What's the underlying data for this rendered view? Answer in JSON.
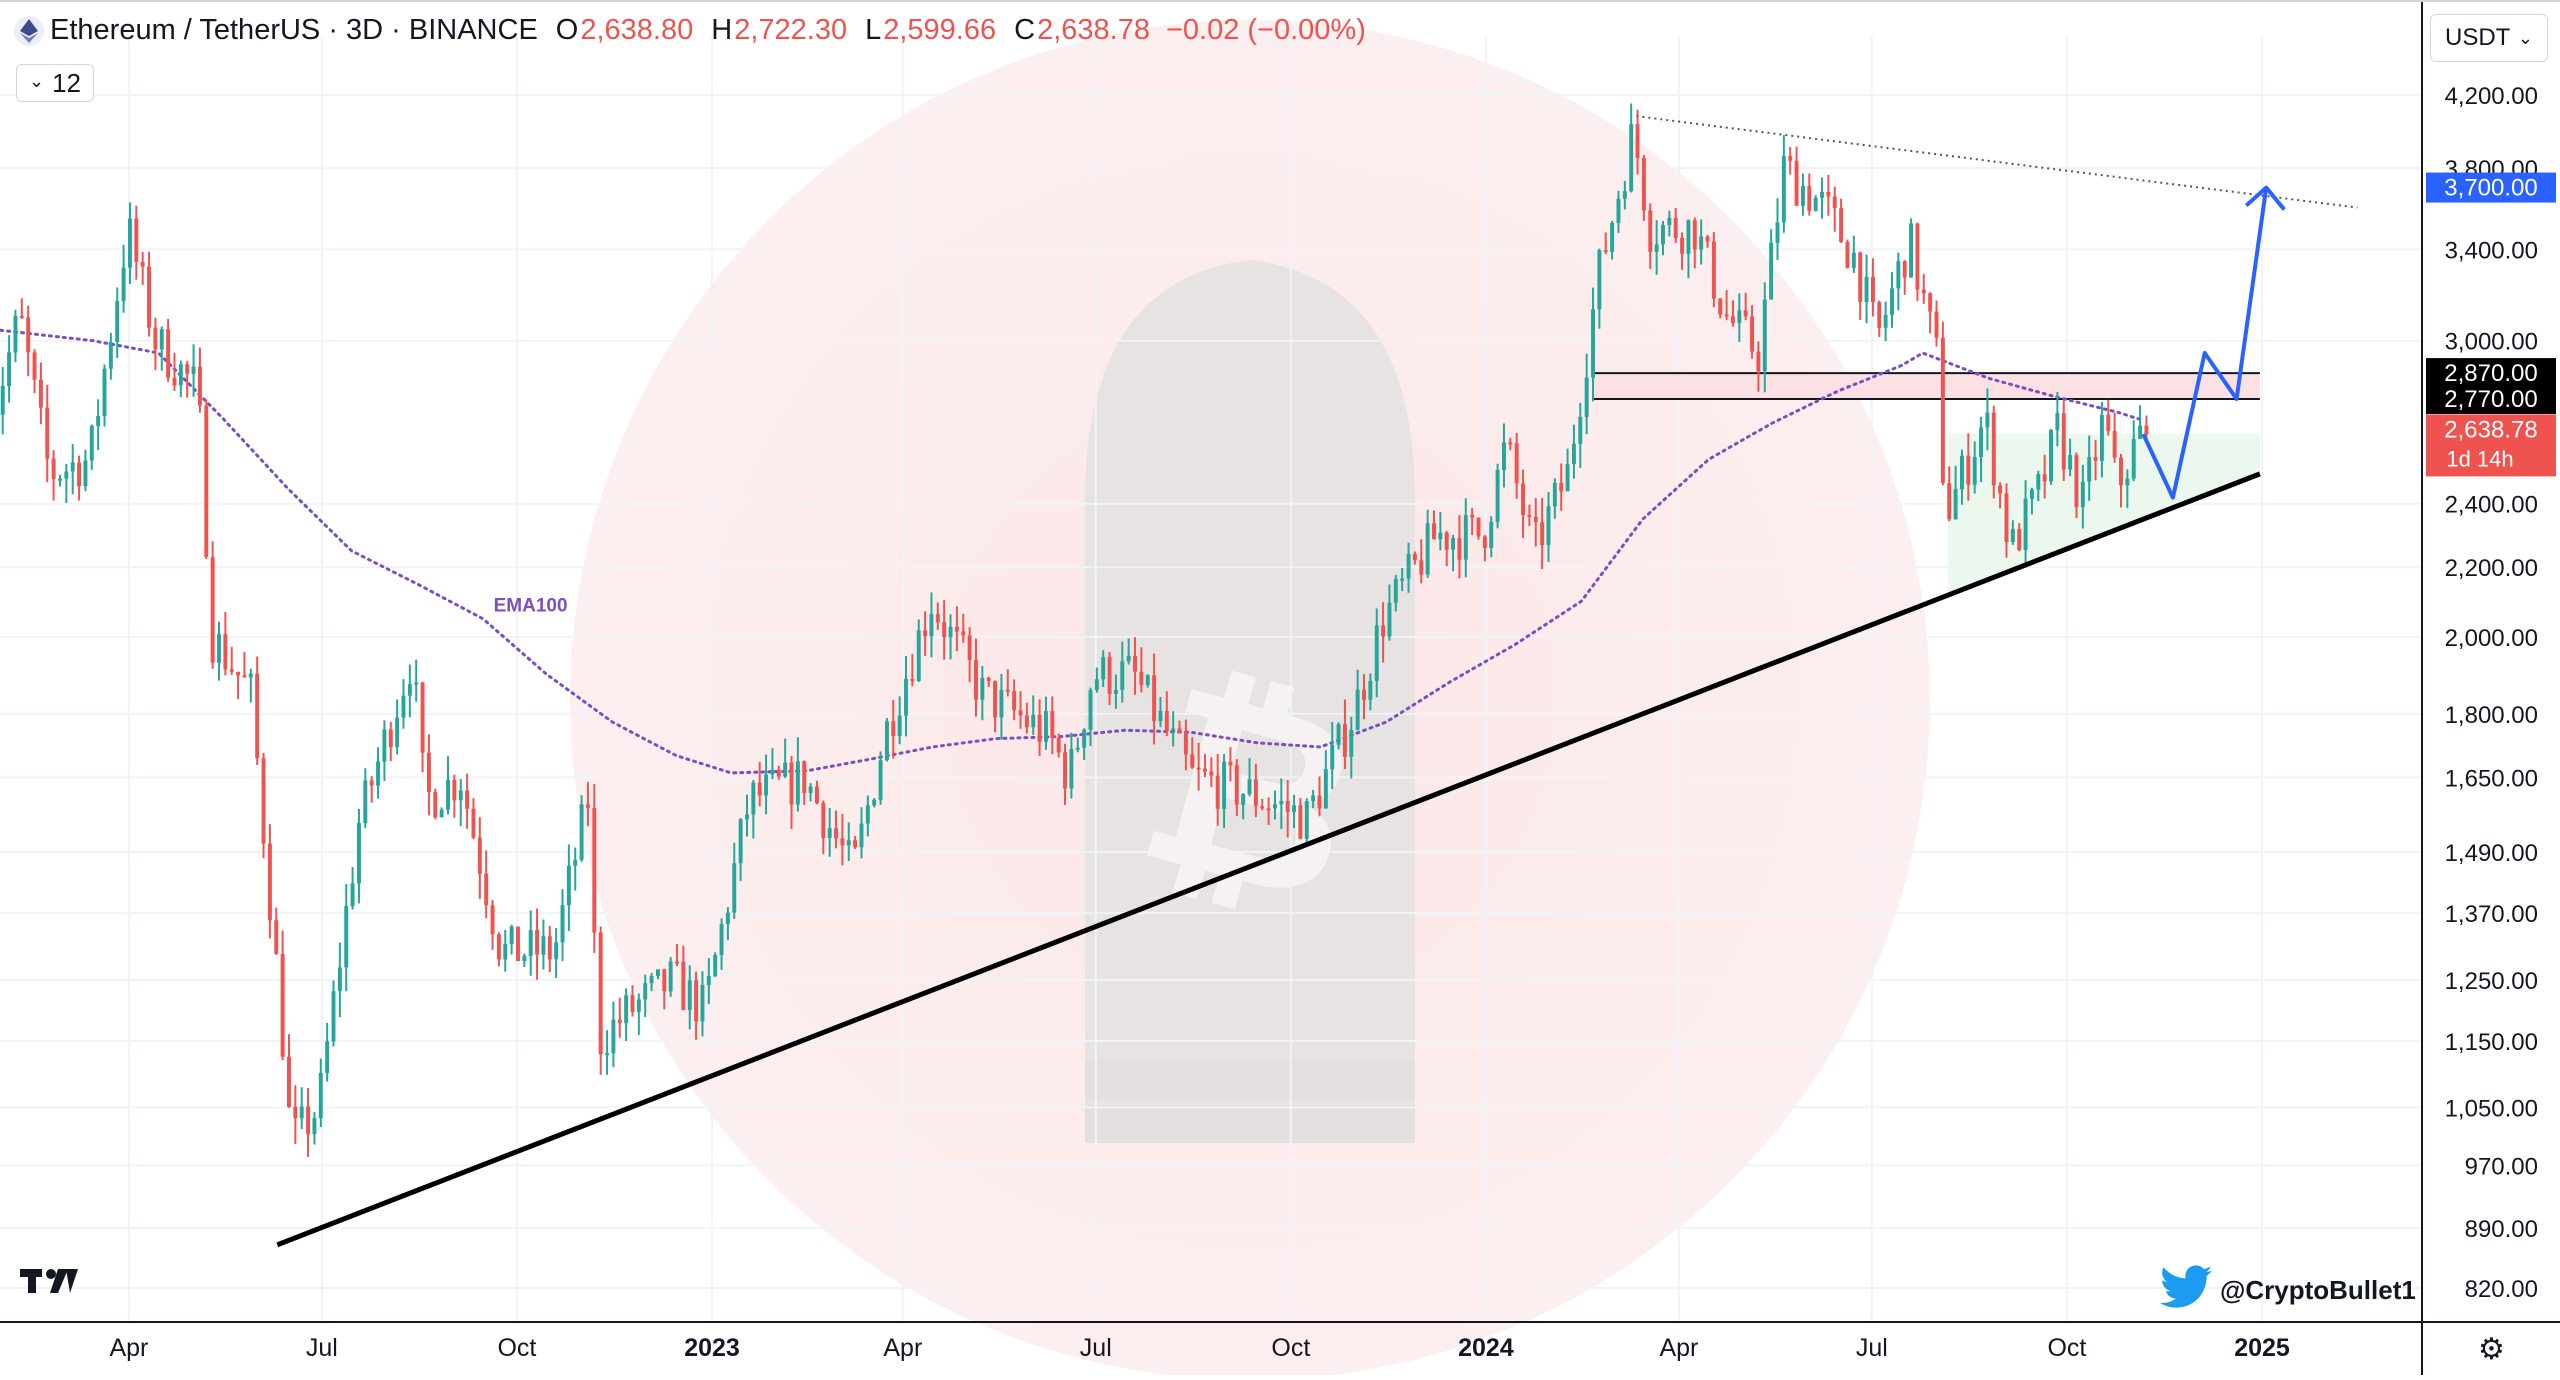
{
  "header": {
    "symbol": "Ethereum / TetherUS · 3D · BINANCE",
    "o_label": "O",
    "o_value": "2,638.80",
    "h_label": "H",
    "h_value": "2,722.30",
    "l_label": "L",
    "l_value": "2,599.66",
    "c_label": "C",
    "c_value": "2,638.78",
    "change": "−0.02 (−0.00%)"
  },
  "indicator_toggle": {
    "count": "12"
  },
  "currency": {
    "label": "USDT"
  },
  "branding": {
    "twitter_handle": "@CryptoBullet1",
    "logo_text": "17"
  },
  "colors": {
    "up": "#26a69a",
    "down": "#ef5350",
    "ema": "#7b4fc0",
    "arrow": "#2962ff",
    "price_tag": "#ef5350"
  },
  "chart_data": {
    "type": "candlestick",
    "scale": "log",
    "y_ticks": [
      4200,
      3800,
      3400,
      3000,
      2400,
      2200,
      2000,
      1800,
      1650,
      1490,
      1370,
      1250,
      1150,
      1050,
      970,
      890,
      820
    ],
    "y_tick_labels": [
      "4,200.00",
      "3,800.00",
      "3,400.00",
      "3,000.00",
      "2,400.00",
      "2,200.00",
      "2,000.00",
      "1,800.00",
      "1,650.00",
      "1,490.00",
      "1,370.00",
      "1,250.00",
      "1,150.00",
      "1,050.00",
      "970.00",
      "890.00",
      "820.00"
    ],
    "x_ticks": [
      {
        "date": "2022-04-01",
        "label": "Apr",
        "bold": false
      },
      {
        "date": "2022-07-01",
        "label": "Jul",
        "bold": false
      },
      {
        "date": "2022-10-01",
        "label": "Oct",
        "bold": false
      },
      {
        "date": "2023-01-01",
        "label": "2023",
        "bold": true
      },
      {
        "date": "2023-04-01",
        "label": "Apr",
        "bold": false
      },
      {
        "date": "2023-07-01",
        "label": "Jul",
        "bold": false
      },
      {
        "date": "2023-10-01",
        "label": "Oct",
        "bold": false
      },
      {
        "date": "2024-01-01",
        "label": "2024",
        "bold": true
      },
      {
        "date": "2024-04-01",
        "label": "Apr",
        "bold": false
      },
      {
        "date": "2024-07-01",
        "label": "Jul",
        "bold": false
      },
      {
        "date": "2024-10-01",
        "label": "Oct",
        "bold": false
      },
      {
        "date": "2025-01-01",
        "label": "2025",
        "bold": true
      }
    ],
    "price_path": [
      [
        "2022-01-24",
        2600
      ],
      [
        "2022-02-10",
        3100
      ],
      [
        "2022-02-24",
        2500
      ],
      [
        "2022-03-15",
        2550
      ],
      [
        "2022-04-02",
        3500
      ],
      [
        "2022-04-15",
        3000
      ],
      [
        "2022-05-05",
        2800
      ],
      [
        "2022-05-12",
        2000
      ],
      [
        "2022-05-30",
        1850
      ],
      [
        "2022-06-13",
        1200
      ],
      [
        "2022-06-18",
        1000
      ],
      [
        "2022-07-01",
        1050
      ],
      [
        "2022-07-20",
        1550
      ],
      [
        "2022-08-14",
        1950
      ],
      [
        "2022-08-20",
        1600
      ],
      [
        "2022-09-06",
        1650
      ],
      [
        "2022-09-25",
        1300
      ],
      [
        "2022-10-20",
        1300
      ],
      [
        "2022-11-05",
        1600
      ],
      [
        "2022-11-10",
        1150
      ],
      [
        "2022-11-25",
        1200
      ],
      [
        "2022-12-15",
        1250
      ],
      [
        "2022-12-30",
        1200
      ],
      [
        "2023-01-20",
        1600
      ],
      [
        "2023-02-15",
        1650
      ],
      [
        "2023-03-10",
        1450
      ],
      [
        "2023-03-25",
        1750
      ],
      [
        "2023-04-16",
        2100
      ],
      [
        "2023-05-10",
        1850
      ],
      [
        "2023-06-10",
        1750
      ],
      [
        "2023-06-20",
        1650
      ],
      [
        "2023-07-01",
        1900
      ],
      [
        "2023-07-20",
        1900
      ],
      [
        "2023-08-17",
        1650
      ],
      [
        "2023-09-10",
        1620
      ],
      [
        "2023-10-10",
        1560
      ],
      [
        "2023-11-01",
        1800
      ],
      [
        "2023-11-15",
        2050
      ],
      [
        "2023-12-10",
        2300
      ],
      [
        "2024-01-01",
        2300
      ],
      [
        "2024-01-12",
        2600
      ],
      [
        "2024-01-25",
        2250
      ],
      [
        "2024-02-10",
        2500
      ],
      [
        "2024-02-25",
        3300
      ],
      [
        "2024-03-12",
        4000
      ],
      [
        "2024-03-20",
        3500
      ],
      [
        "2024-04-10",
        3500
      ],
      [
        "2024-04-25",
        3100
      ],
      [
        "2024-05-10",
        2950
      ],
      [
        "2024-05-22",
        3800
      ],
      [
        "2024-06-10",
        3600
      ],
      [
        "2024-06-25",
        3350
      ],
      [
        "2024-07-05",
        3000
      ],
      [
        "2024-07-20",
        3450
      ],
      [
        "2024-08-03",
        2900
      ],
      [
        "2024-08-06",
        2350
      ],
      [
        "2024-08-25",
        2700
      ],
      [
        "2024-09-06",
        2250
      ],
      [
        "2024-09-20",
        2450
      ],
      [
        "2024-09-28",
        2650
      ],
      [
        "2024-10-10",
        2400
      ],
      [
        "2024-10-20",
        2700
      ],
      [
        "2024-10-26",
        2450
      ],
      [
        "2024-11-06",
        2638.78
      ]
    ],
    "ema100": {
      "label": "EMA100",
      "points": [
        [
          "2022-01-24",
          3050
        ],
        [
          "2022-03-15",
          3000
        ],
        [
          "2022-04-15",
          2950
        ],
        [
          "2022-05-15",
          2700
        ],
        [
          "2022-06-15",
          2450
        ],
        [
          "2022-07-15",
          2250
        ],
        [
          "2022-08-15",
          2150
        ],
        [
          "2022-09-15",
          2050
        ],
        [
          "2022-10-15",
          1900
        ],
        [
          "2022-11-15",
          1780
        ],
        [
          "2022-12-15",
          1700
        ],
        [
          "2023-01-10",
          1660
        ],
        [
          "2023-02-15",
          1665
        ],
        [
          "2023-03-15",
          1690
        ],
        [
          "2023-04-15",
          1720
        ],
        [
          "2023-05-15",
          1740
        ],
        [
          "2023-06-15",
          1745
        ],
        [
          "2023-07-15",
          1760
        ],
        [
          "2023-08-15",
          1755
        ],
        [
          "2023-09-15",
          1730
        ],
        [
          "2023-10-15",
          1720
        ],
        [
          "2023-11-15",
          1780
        ],
        [
          "2023-12-15",
          1880
        ],
        [
          "2024-01-15",
          1980
        ],
        [
          "2024-02-15",
          2100
        ],
        [
          "2024-03-15",
          2350
        ],
        [
          "2024-04-15",
          2550
        ],
        [
          "2024-05-15",
          2680
        ],
        [
          "2024-06-15",
          2800
        ],
        [
          "2024-07-15",
          2900
        ],
        [
          "2024-07-25",
          2950
        ],
        [
          "2024-08-25",
          2850
        ],
        [
          "2024-09-25",
          2780
        ],
        [
          "2024-10-25",
          2720
        ],
        [
          "2024-11-06",
          2690
        ]
      ]
    },
    "annotations": {
      "support_line": [
        [
          "2022-06-10",
          870
        ],
        [
          "2024-12-31",
          2500
        ]
      ],
      "resistance_line": [
        [
          "2024-03-12",
          4080
        ],
        [
          "2025-02-15",
          3600
        ]
      ],
      "resistance_zone": {
        "from": "2024-02-20",
        "to": "2024-12-31",
        "upper": 2870,
        "lower": 2770
      },
      "projected_path": [
        [
          "2024-11-06",
          2640
        ],
        [
          "2024-11-20",
          2420
        ],
        [
          "2024-12-05",
          2950
        ],
        [
          "2024-12-20",
          2770
        ],
        [
          "2025-01-03",
          3700
        ]
      ]
    },
    "price_labels": [
      {
        "value": 3700,
        "text": "3,700.00",
        "color": "#2962ff",
        "text_color": "#ffffff"
      },
      {
        "value": 2870,
        "text": "2,870.00",
        "color": "#000000",
        "text_color": "#ffffff"
      },
      {
        "value": 2770,
        "text": "2,770.00",
        "color": "#000000",
        "text_color": "#ffffff"
      },
      {
        "value": 2638.78,
        "text": "2,638.78",
        "sub": "1d 14h",
        "color": "#ef5350",
        "text_color": "#ffffff"
      }
    ]
  }
}
